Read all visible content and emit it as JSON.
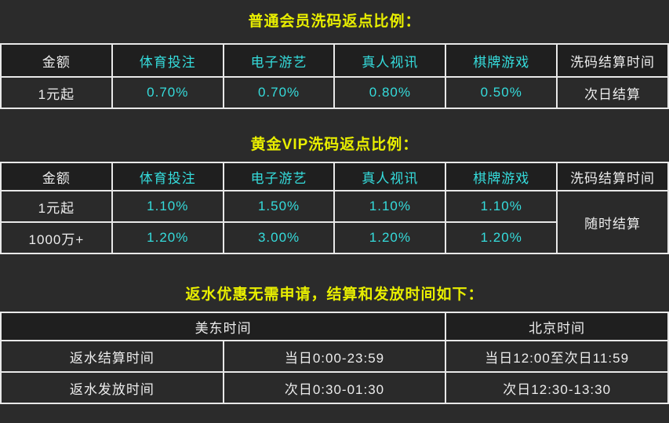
{
  "colors": {
    "background": "#2b2b2b",
    "title_yellow": "#e8ee00",
    "accent_cyan": "#35dcdc",
    "text_white": "#ececec",
    "border": "#e8e8e8",
    "header_cell_bg": "#1f1f1f",
    "data_cell_bg": "#2a2a2a"
  },
  "sections": [
    {
      "title": "普通会员洗码返点比例：",
      "headers": [
        "金额",
        "体育投注",
        "电子游艺",
        "真人视讯",
        "棋牌游戏",
        "洗码结算时间"
      ],
      "rows": [
        [
          "1元起",
          "0.70%",
          "0.70%",
          "0.80%",
          "0.50%",
          "次日结算"
        ]
      ]
    },
    {
      "title": "黄金VIP洗码返点比例：",
      "headers": [
        "金额",
        "体育投注",
        "电子游艺",
        "真人视讯",
        "棋牌游戏",
        "洗码结算时间"
      ],
      "rows": [
        [
          "1元起",
          "1.10%",
          "1.50%",
          "1.10%",
          "1.10%"
        ],
        [
          "1000万+",
          "1.20%",
          "3.00%",
          "1.20%",
          "1.20%"
        ]
      ],
      "merged_settlement": "随时结算"
    },
    {
      "title": "返水优惠无需申请，结算和发放时间如下：",
      "headers": [
        "美东时间",
        "北京时间"
      ],
      "rows": [
        [
          "返水结算时间",
          "当日0:00-23:59",
          "当日12:00至次日11:59"
        ],
        [
          "返水发放时间",
          "次日0:30-01:30",
          "次日12:30-13:30"
        ]
      ]
    }
  ]
}
